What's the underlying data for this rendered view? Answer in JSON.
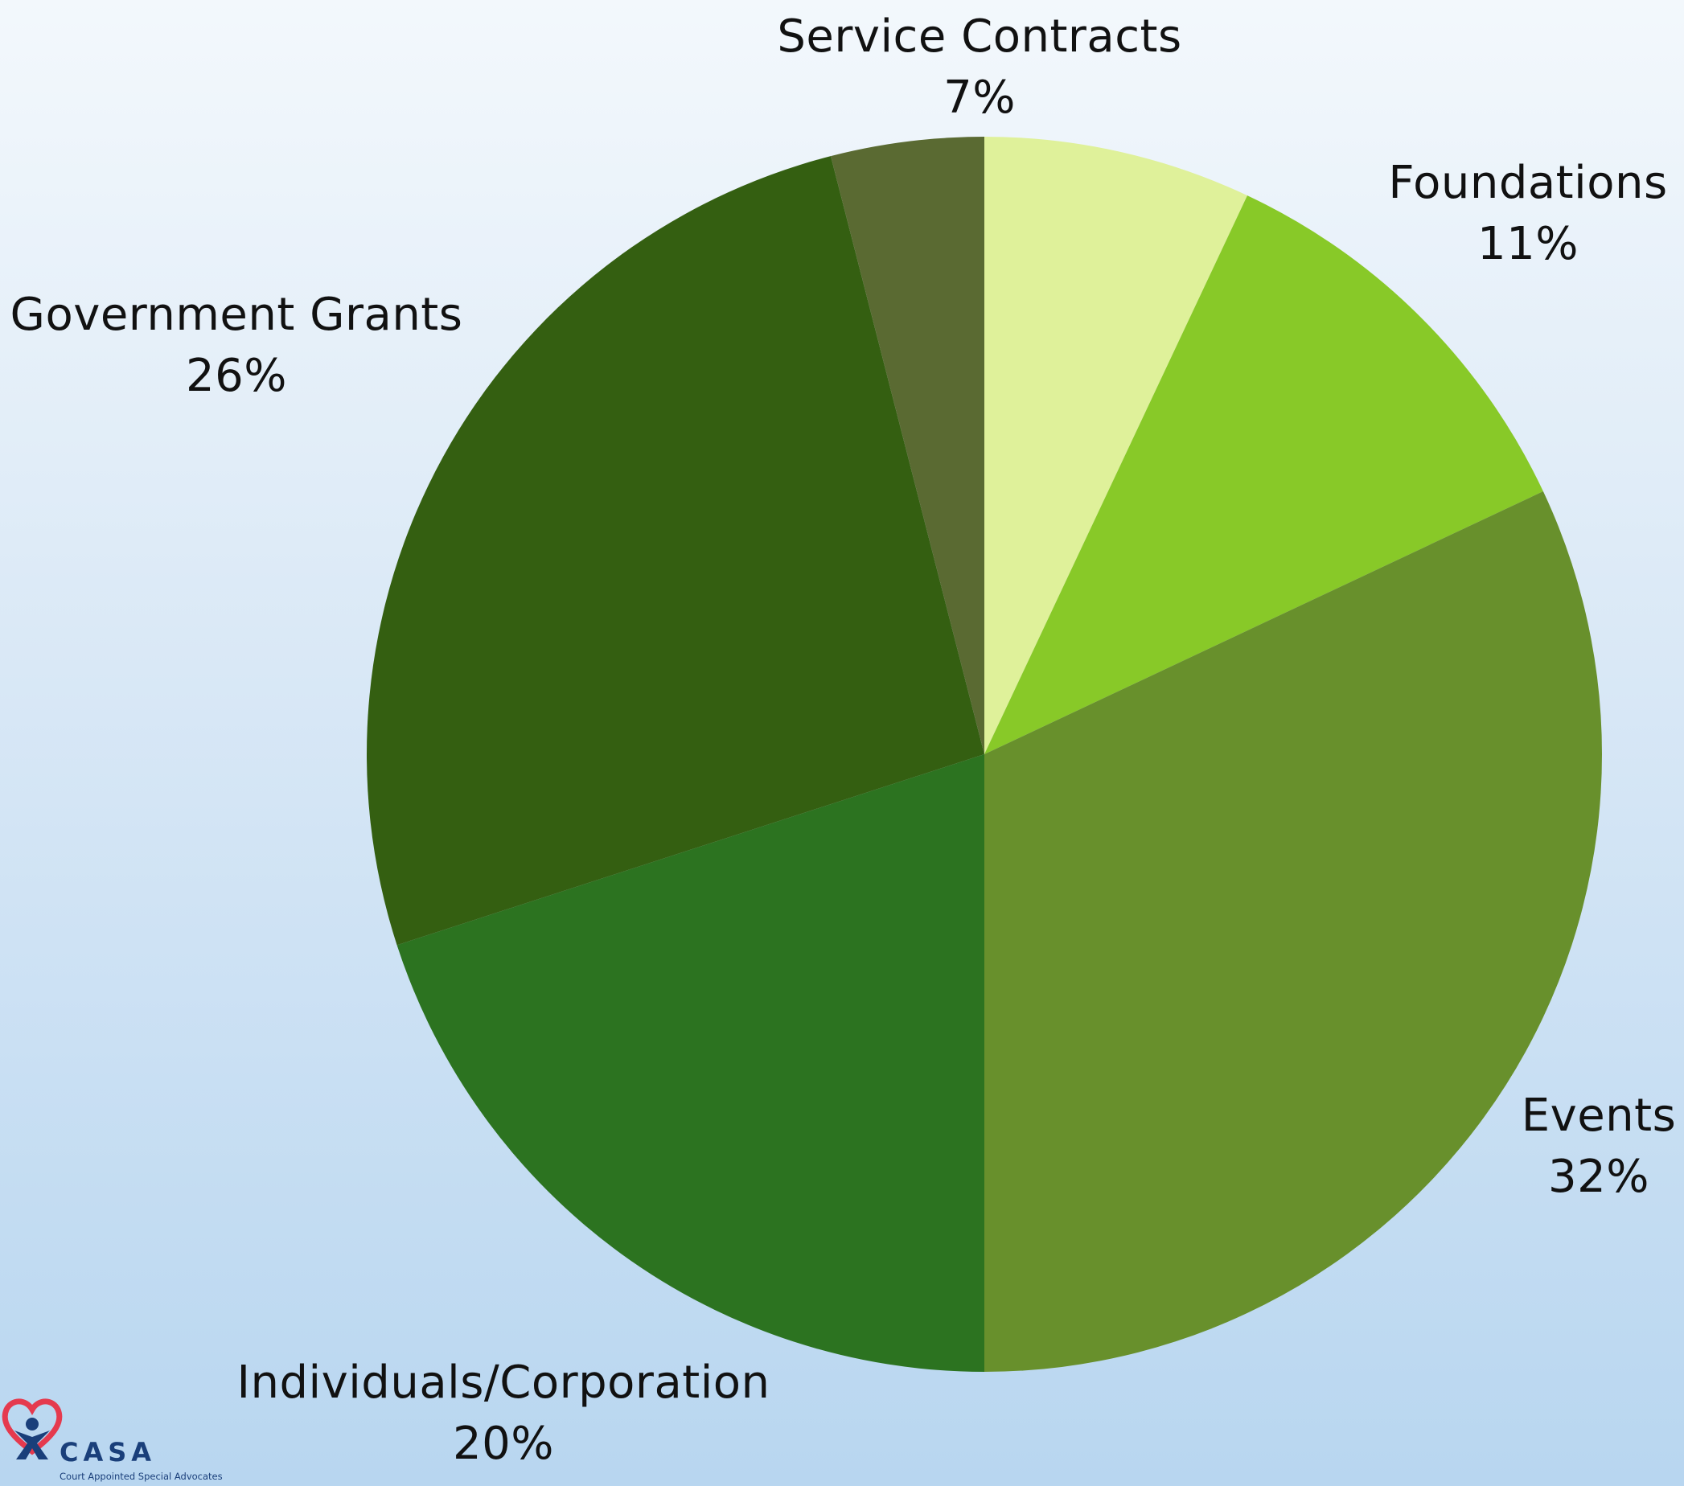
{
  "chart_data": {
    "type": "pie",
    "title": "",
    "start_angle": "12 o'clock",
    "direction": "clockwise",
    "legend": "none",
    "slices": [
      {
        "label": "Service Contracts",
        "value_label": "7%",
        "value": 7,
        "color": "#dff19a"
      },
      {
        "label": "Foundations",
        "value_label": "11%",
        "value": 11,
        "color": "#88c928"
      },
      {
        "label": "Events",
        "value_label": "32%",
        "value": 32,
        "color": "#68902c"
      },
      {
        "label": "Individuals/Corporation",
        "value_label": "20%",
        "value": 20,
        "color": "#2c7320"
      },
      {
        "label": "Government Grants",
        "value_label": "26%",
        "value": 26,
        "color": "#345f11"
      },
      {
        "label": "",
        "value_label": "",
        "value": 4,
        "color": "#5a6a32"
      }
    ]
  },
  "logo": {
    "name": "CASA",
    "tagline": "Court Appointed Special Advocates",
    "heart_color": "#e53a4e",
    "figure_color": "#1a3f7a"
  }
}
